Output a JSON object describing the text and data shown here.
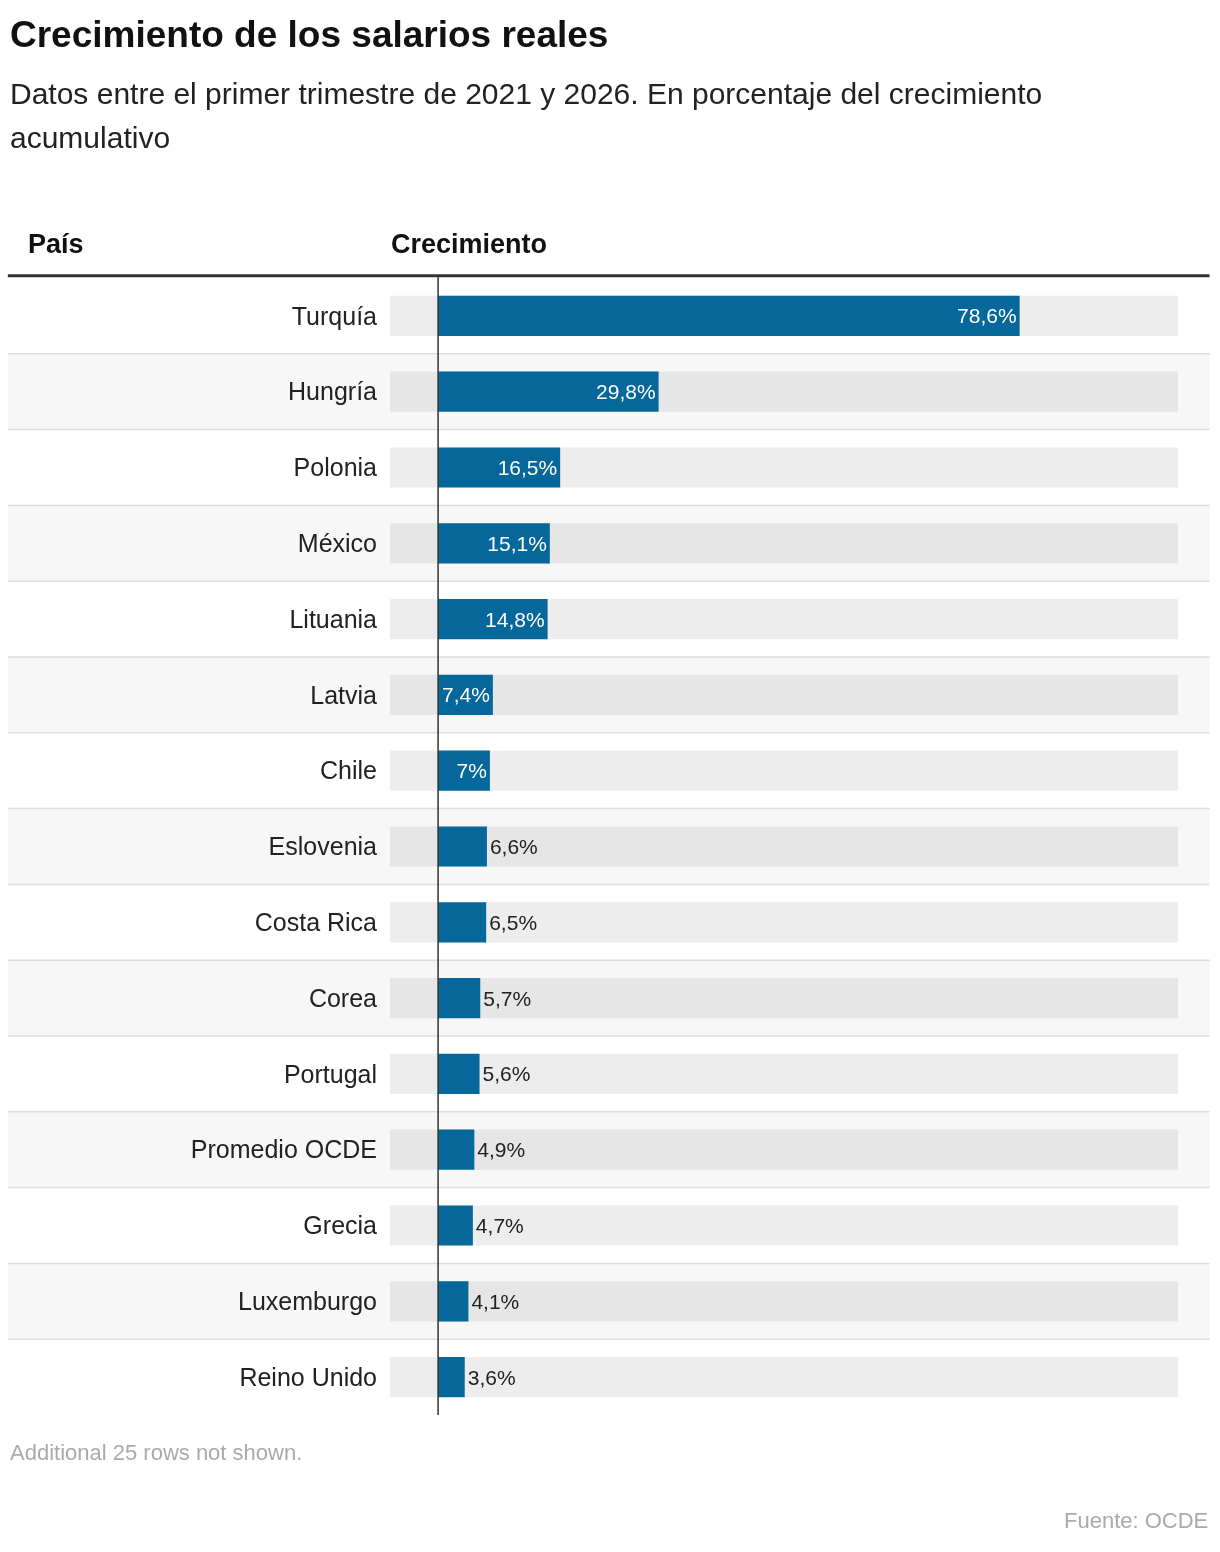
{
  "chart_data": {
    "type": "bar",
    "orientation": "horizontal",
    "title": "Crecimiento de los salarios reales",
    "subtitle": "Datos entre el primer trimestre de 2021 y 2026. En porcentaje del crecimiento acumulativo",
    "ylabel": "País",
    "xlabel": "Crecimiento",
    "categories": [
      "Turquía",
      "Hungría",
      "Polonia",
      "México",
      "Lituania",
      "Latvia",
      "Chile",
      "Eslovenia",
      "Costa Rica",
      "Corea",
      "Portugal",
      "Promedio OCDE",
      "Grecia",
      "Luxemburgo",
      "Reino Unido"
    ],
    "values": [
      78.6,
      29.8,
      16.5,
      15.1,
      14.8,
      7.4,
      7,
      6.6,
      6.5,
      5.7,
      5.6,
      4.9,
      4.7,
      4.1,
      3.6
    ],
    "value_labels": [
      "78,6%",
      "29,8%",
      "16,5%",
      "15,1%",
      "14,8%",
      "7,4%",
      "7%",
      "6,6%",
      "6,5%",
      "5,7%",
      "5,6%",
      "4,9%",
      "4,7%",
      "4,1%",
      "3,6%"
    ],
    "color": "#06679a",
    "xlim": [
      -6.5,
      100
    ],
    "tick_labels": "y",
    "grid": false,
    "annotations": [
      "Additional 25 rows not shown.",
      "Fuente: OCDE"
    ]
  }
}
